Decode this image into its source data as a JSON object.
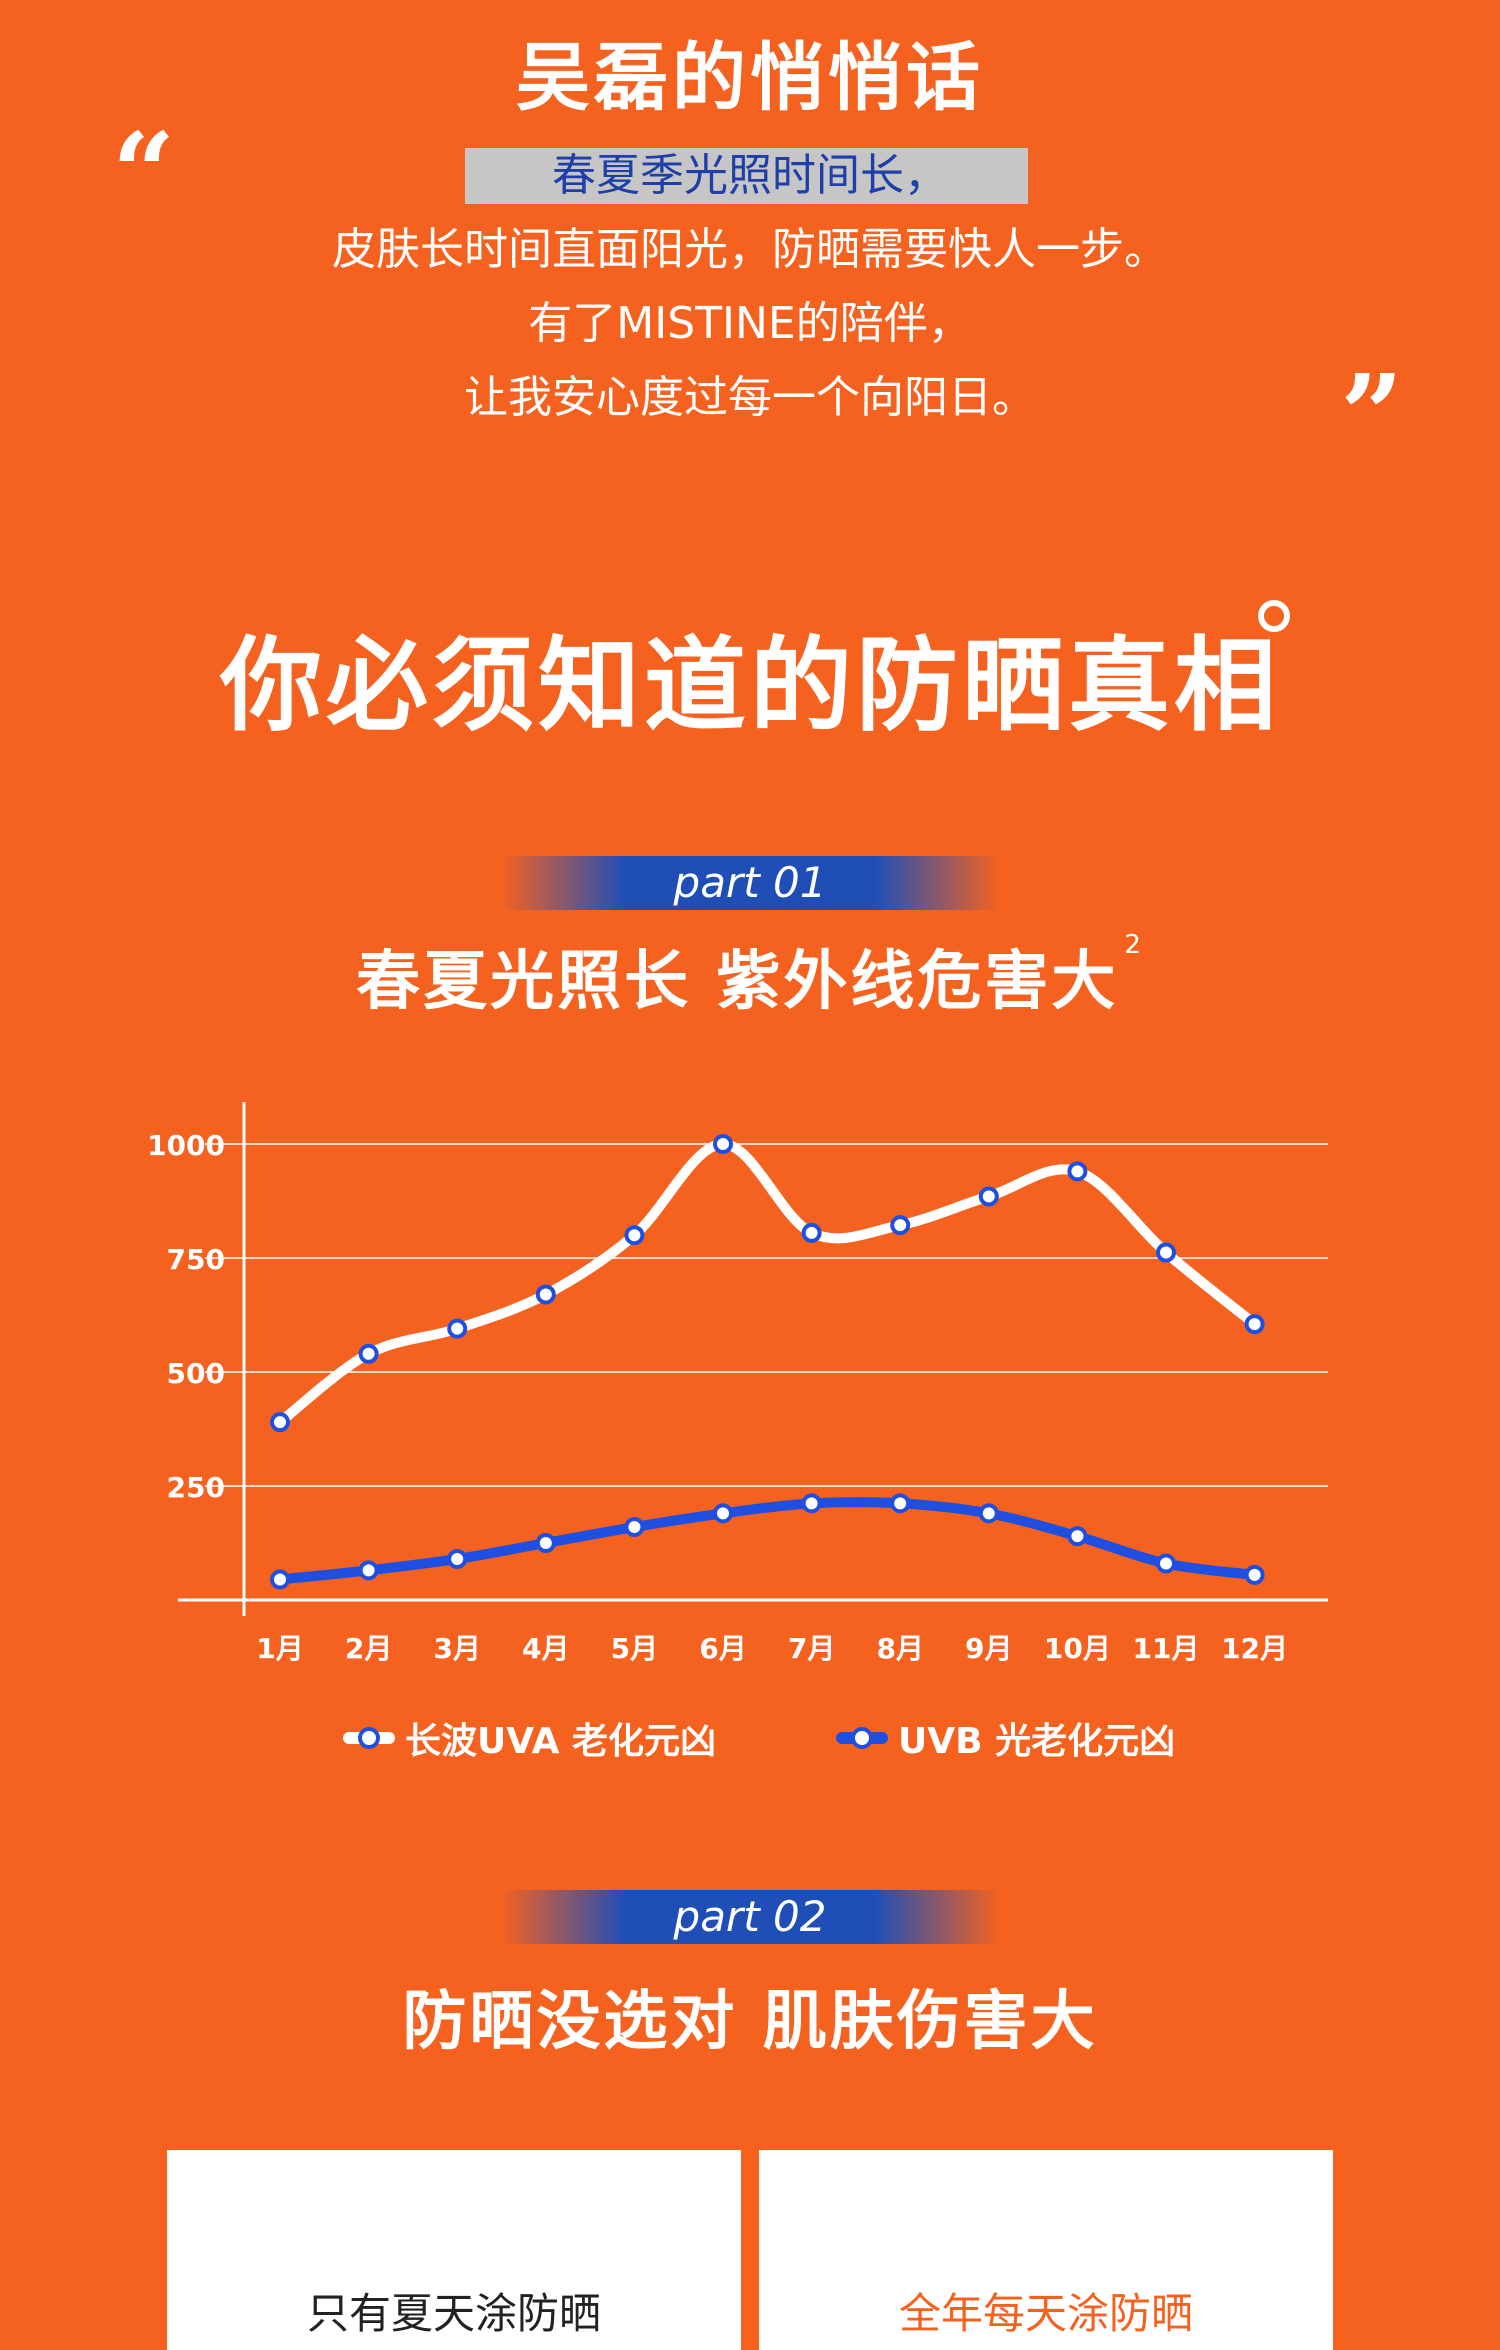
{
  "quote": {
    "title": "吴磊的悄悄话",
    "open_mark": "“",
    "close_mark": "”",
    "lines": [
      "春夏季光照时间长，",
      "皮肤长时间直面阳光，防晒需要快人一步。",
      "有了MISTINE的陪伴，",
      "让我安心度过每一个向阳日。"
    ]
  },
  "truth_title": "你必须知道的防晒真相",
  "part1": {
    "badge": "part 01",
    "title": "春夏光照长 紫外线危害大",
    "sup": "2"
  },
  "chart_data": {
    "type": "line",
    "categories": [
      "1月",
      "2月",
      "3月",
      "4月",
      "5月",
      "6月",
      "7月",
      "8月",
      "9月",
      "10月",
      "11月",
      "12月"
    ],
    "yticks": [
      250,
      500,
      750,
      1000
    ],
    "ylim": [
      0,
      1000
    ],
    "grid": true,
    "legend_position": "bottom",
    "series": [
      {
        "name": "长波UVA 老化元凶",
        "color": "#ffffff",
        "values": [
          390,
          540,
          595,
          670,
          800,
          1000,
          805,
          822,
          885,
          940,
          762,
          605
        ]
      },
      {
        "name": "UVB 光老化元凶",
        "color": "#1f4fe0",
        "values": [
          45,
          65,
          90,
          125,
          160,
          190,
          212,
          212,
          190,
          140,
          80,
          55
        ]
      }
    ]
  },
  "part2": {
    "badge": "part 02",
    "title": "防晒没选对 肌肤伤害大"
  },
  "cards": [
    {
      "text": "只有夏天涂防晒",
      "color": "#222222"
    },
    {
      "text": "全年每天涂防晒",
      "color": "#f5621f"
    }
  ],
  "colors": {
    "background": "#f5621f",
    "accent_blue": "#1f4fb6",
    "line_blue": "#1f4fe0"
  }
}
